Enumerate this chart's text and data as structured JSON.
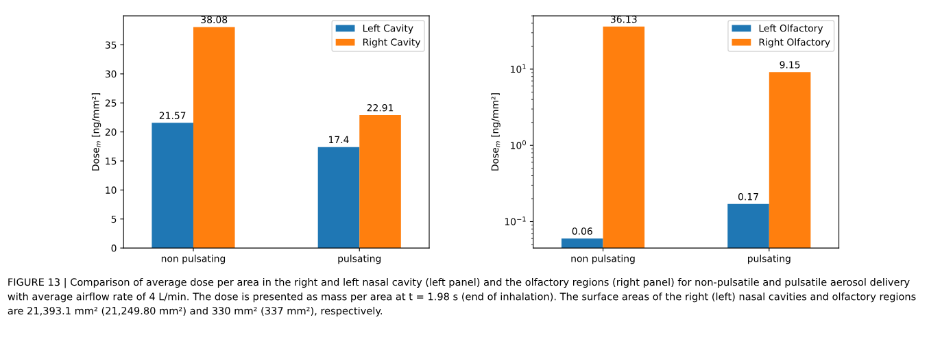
{
  "chart_data": [
    {
      "type": "bar",
      "categories": [
        "non pulsating",
        "pulsating"
      ],
      "ylabel": "Dose$_{m}$ [ng/mm²]",
      "ylim": [
        0,
        40
      ],
      "yticks": [
        0,
        5,
        10,
        15,
        20,
        25,
        30,
        35
      ],
      "data_labels": true,
      "legend": "top right",
      "grid": false,
      "series": [
        {
          "name": "Left Cavity",
          "color": "#1f77b4",
          "values": [
            21.57,
            17.4
          ]
        },
        {
          "name": "Right Cavity",
          "color": "#ff7f0e",
          "values": [
            38.08,
            22.91
          ]
        }
      ],
      "annotations": [
        "FIGURE 13 | Comparison of average dose per area in the right and left nasal cavity (left panel) and the olfactory regions (right panel) for non-pulsatile and pulsatile aerosol delivery with average airflow rate of 4 L/min. The dose is presented as mass per area at t = 1.98 s (end of inhalation). The surface areas of the right (left) nasal cavities and olfactory regions are 21,393.1 mm² (21,249.80 mm²) and 330 mm² (337 mm²), respectively."
      ]
    },
    {
      "type": "bar",
      "categories": [
        "non pulsating",
        "pulsating"
      ],
      "ylabel": "Dose$_{m}$ [ng/mm²]",
      "log": true,
      "ylim": [
        0.045,
        50
      ],
      "yticks": [
        {
          "value": 0.1,
          "label": "10$^{−1}$"
        },
        {
          "value": 1,
          "label": "10$^{0}$"
        },
        {
          "value": 10,
          "label": "10$^{1}$"
        }
      ],
      "data_labels": true,
      "legend": "top right",
      "grid": false,
      "series": [
        {
          "name": "Left Olfactory",
          "color": "#1f77b4",
          "values": [
            0.06,
            0.17
          ]
        },
        {
          "name": "Right Olfactory",
          "color": "#ff7f0e",
          "values": [
            36.13,
            9.15
          ]
        }
      ]
    }
  ]
}
